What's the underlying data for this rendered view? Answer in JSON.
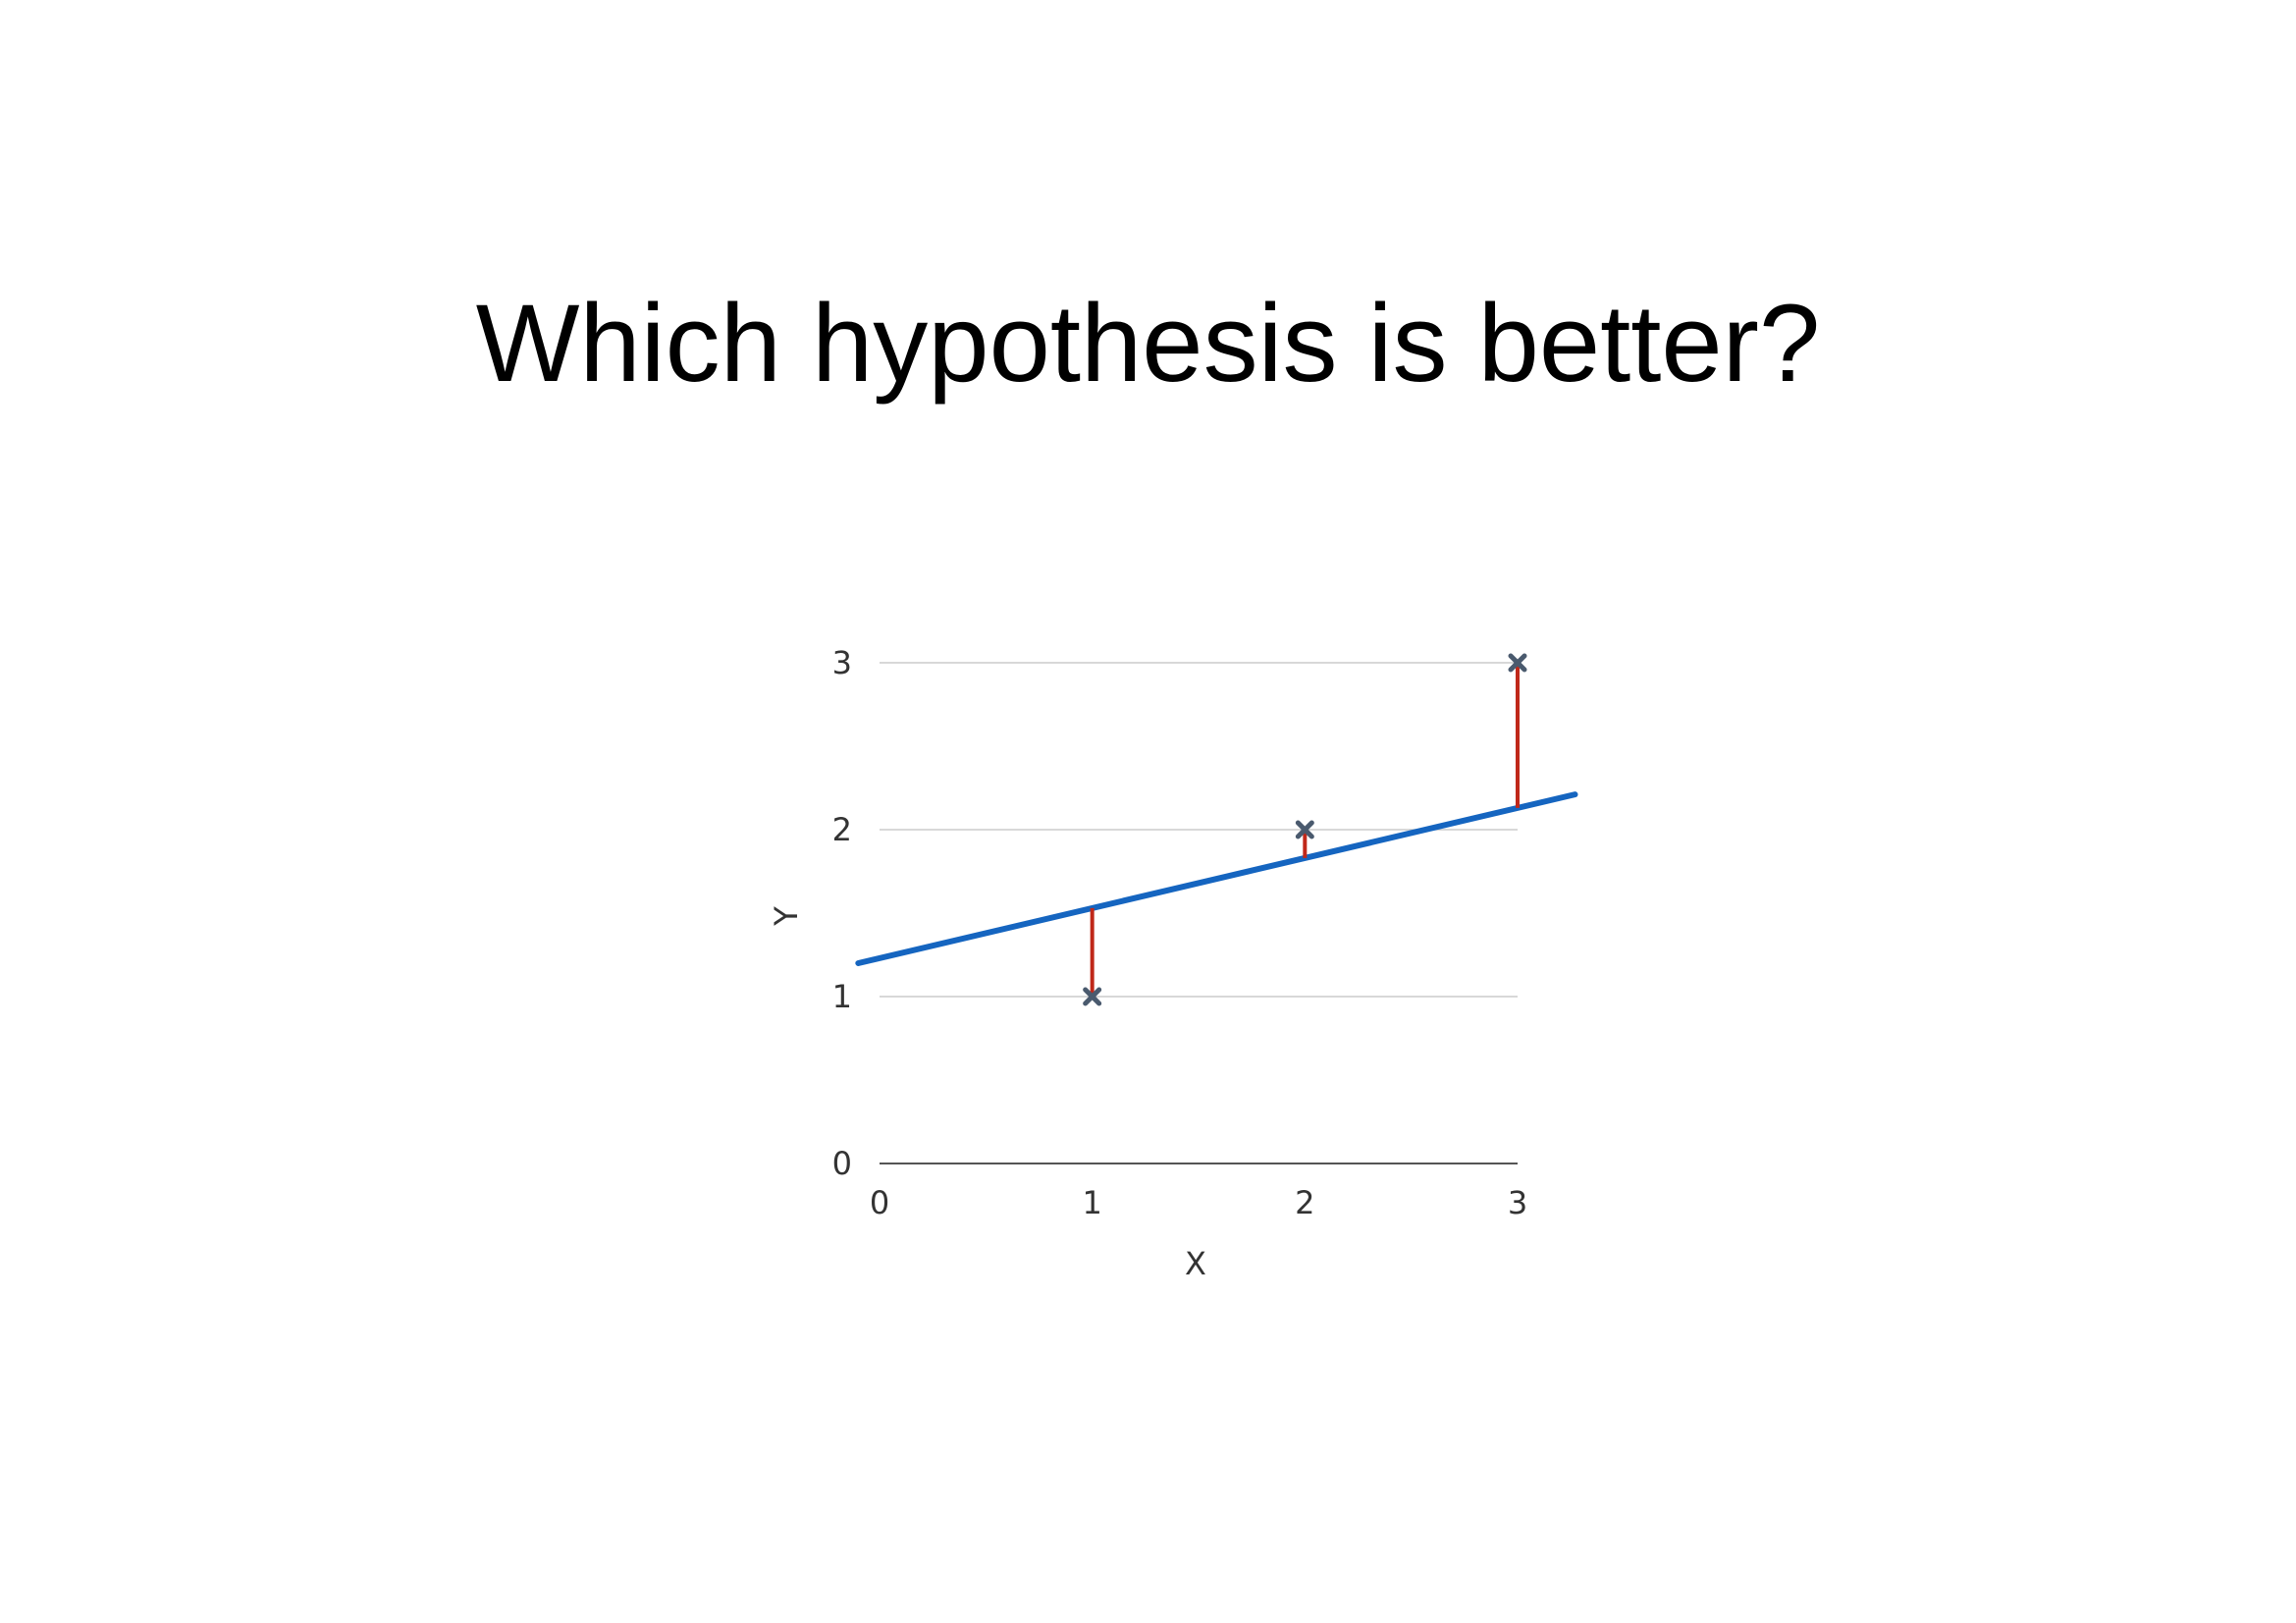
{
  "slide": {
    "title": "Which hypothesis is better?"
  },
  "chart_data": {
    "type": "scatter",
    "xlabel": "X",
    "ylabel": "Y",
    "xlim": [
      0,
      3
    ],
    "ylim": [
      0,
      3
    ],
    "x_ticks": [
      "0",
      "1",
      "2",
      "3"
    ],
    "y_ticks": [
      "0",
      "1",
      "2",
      "3"
    ],
    "grid": "horizontal",
    "points": [
      {
        "x": 1,
        "y": 1
      },
      {
        "x": 2,
        "y": 2
      },
      {
        "x": 3,
        "y": 3
      }
    ],
    "fit_line": {
      "intercept": 1.23,
      "slope": 0.3,
      "x_start": -0.1,
      "x_end": 3.27
    },
    "residuals": [
      {
        "x": 1,
        "y_point": 1,
        "y_fit": 1.53
      },
      {
        "x": 2,
        "y_point": 2,
        "y_fit": 1.83
      },
      {
        "x": 3,
        "y_point": 3,
        "y_fit": 2.13
      }
    ],
    "colors": {
      "fit_line": "#1565c0",
      "residual": "#c0281a",
      "point": "#4a5a6e",
      "grid": "#cccccc",
      "axis": "#555555"
    }
  }
}
